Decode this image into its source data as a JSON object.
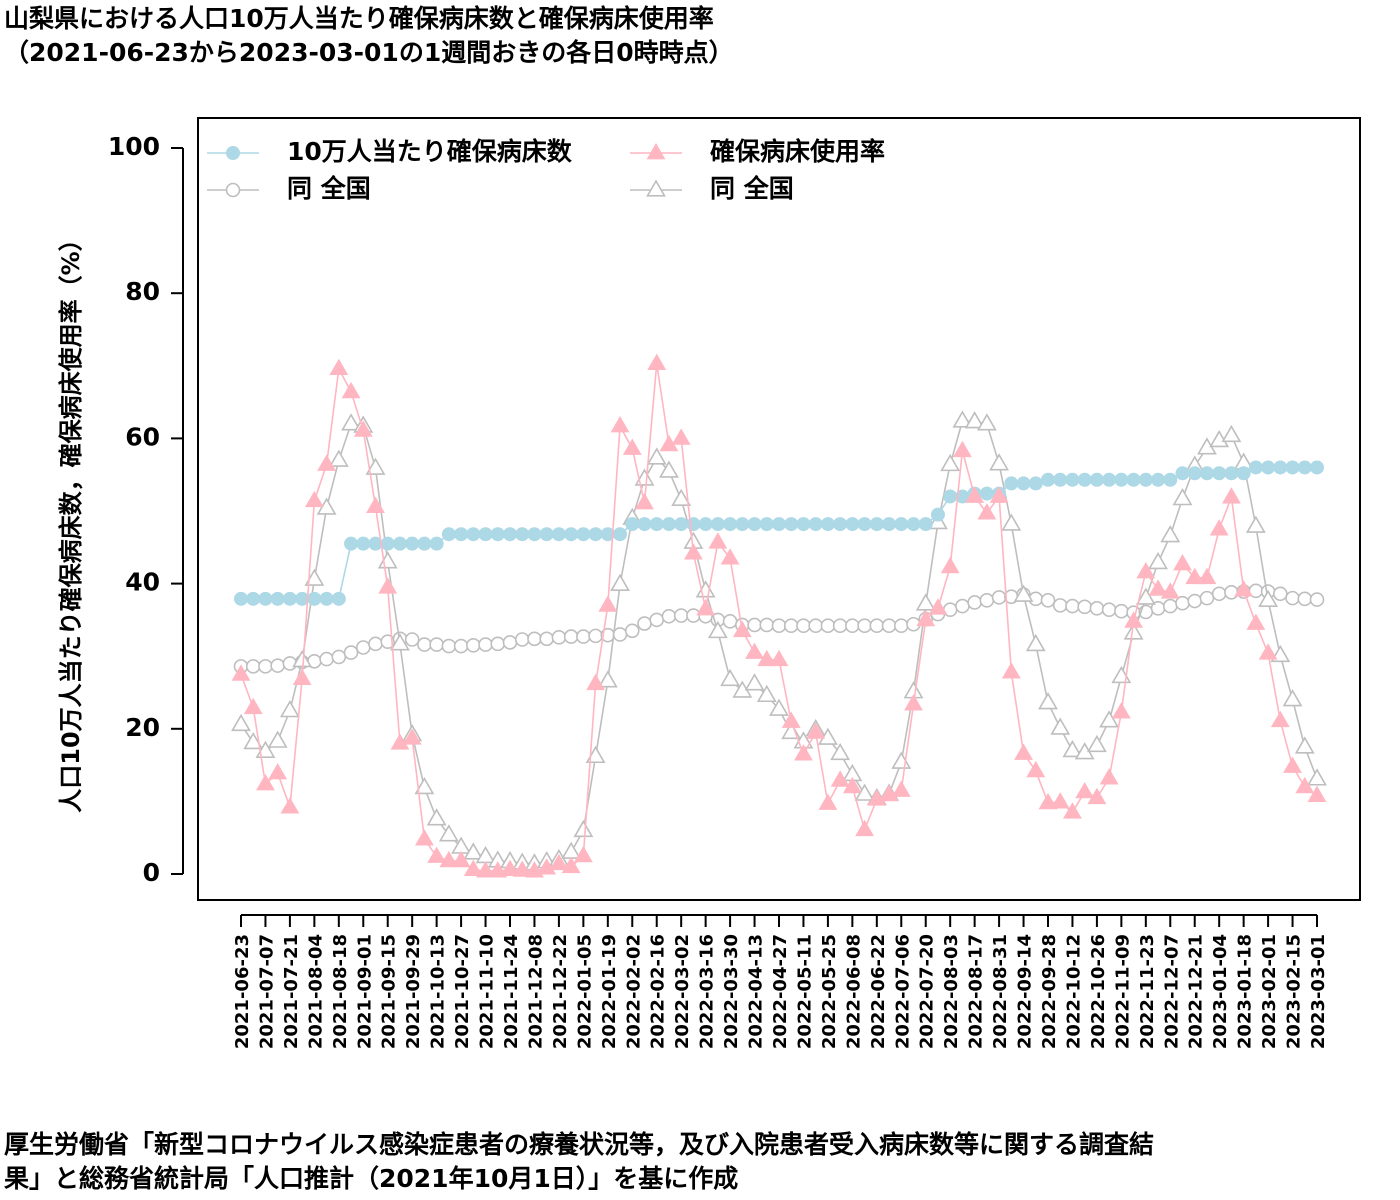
{
  "title_line1": "山梨県における人口10万人当たり確保病床数と確保病床使用率",
  "title_line2": "（2021-06-23から2023-03-01の1週間おきの各日0時時点）",
  "caption_line1": "厚生労働省「新型コロナウイルス感染症患者の療養状況等，及び入院患者受入病床数等に関する調査結",
  "caption_line2": "果」と総務省統計局「人口推計（2021年10月1日）」を基に作成",
  "chart_data": {
    "type": "line",
    "ylabel": "人口10万人当たり確保病床数，確保病床使用率（%）",
    "ylim": [
      0,
      100
    ],
    "yticks": [
      0,
      20,
      40,
      60,
      80,
      100
    ],
    "x": [
      "2021-06-23",
      "2021-06-30",
      "2021-07-07",
      "2021-07-14",
      "2021-07-21",
      "2021-07-28",
      "2021-08-04",
      "2021-08-11",
      "2021-08-18",
      "2021-08-25",
      "2021-09-01",
      "2021-09-08",
      "2021-09-15",
      "2021-09-22",
      "2021-09-29",
      "2021-10-06",
      "2021-10-13",
      "2021-10-20",
      "2021-10-27",
      "2021-11-03",
      "2021-11-10",
      "2021-11-17",
      "2021-11-24",
      "2021-12-01",
      "2021-12-08",
      "2021-12-15",
      "2021-12-22",
      "2021-12-29",
      "2022-01-05",
      "2022-01-12",
      "2022-01-19",
      "2022-01-26",
      "2022-02-02",
      "2022-02-09",
      "2022-02-16",
      "2022-02-23",
      "2022-03-02",
      "2022-03-09",
      "2022-03-16",
      "2022-03-23",
      "2022-03-30",
      "2022-04-06",
      "2022-04-13",
      "2022-04-20",
      "2022-04-27",
      "2022-05-04",
      "2022-05-11",
      "2022-05-18",
      "2022-05-25",
      "2022-06-01",
      "2022-06-08",
      "2022-06-15",
      "2022-06-22",
      "2022-06-29",
      "2022-07-06",
      "2022-07-13",
      "2022-07-20",
      "2022-07-27",
      "2022-08-03",
      "2022-08-10",
      "2022-08-17",
      "2022-08-24",
      "2022-08-31",
      "2022-09-07",
      "2022-09-14",
      "2022-09-21",
      "2022-09-28",
      "2022-10-05",
      "2022-10-12",
      "2022-10-19",
      "2022-10-26",
      "2022-11-02",
      "2022-11-09",
      "2022-11-16",
      "2022-11-23",
      "2022-11-30",
      "2022-12-07",
      "2022-12-14",
      "2022-12-21",
      "2022-12-28",
      "2023-01-04",
      "2023-01-11",
      "2023-01-18",
      "2023-01-25",
      "2023-02-01",
      "2023-02-08",
      "2023-02-15",
      "2023-02-22",
      "2023-03-01"
    ],
    "tick_labels": [
      "2021-06-23",
      "2021-07-07",
      "2021-07-21",
      "2021-08-04",
      "2021-08-18",
      "2021-09-01",
      "2021-09-15",
      "2021-09-29",
      "2021-10-13",
      "2021-10-27",
      "2021-11-10",
      "2021-11-24",
      "2021-12-08",
      "2021-12-22",
      "2022-01-05",
      "2022-01-19",
      "2022-02-02",
      "2022-02-16",
      "2022-03-02",
      "2022-03-16",
      "2022-03-30",
      "2022-04-13",
      "2022-04-27",
      "2022-05-11",
      "2022-05-25",
      "2022-06-08",
      "2022-06-22",
      "2022-07-06",
      "2022-07-20",
      "2022-08-03",
      "2022-08-17",
      "2022-08-31",
      "2022-09-14",
      "2022-09-28",
      "2022-10-12",
      "2022-10-26",
      "2022-11-09",
      "2022-11-23",
      "2022-12-07",
      "2022-12-21",
      "2023-01-04",
      "2023-01-18",
      "2023-02-01",
      "2023-02-15",
      "2023-03-01"
    ],
    "series": [
      {
        "name": "10万人当たり確保病床数",
        "marker": "circle-filled",
        "color": "#add8e6",
        "values": [
          37.9,
          37.9,
          37.9,
          37.9,
          37.9,
          37.9,
          37.9,
          37.9,
          37.9,
          45.5,
          45.5,
          45.5,
          45.5,
          45.5,
          45.5,
          45.5,
          45.5,
          46.8,
          46.8,
          46.8,
          46.8,
          46.8,
          46.8,
          46.8,
          46.8,
          46.8,
          46.8,
          46.8,
          46.8,
          46.8,
          46.8,
          46.8,
          48.2,
          48.2,
          48.2,
          48.2,
          48.2,
          48.2,
          48.2,
          48.2,
          48.2,
          48.2,
          48.2,
          48.2,
          48.2,
          48.2,
          48.2,
          48.2,
          48.2,
          48.2,
          48.2,
          48.2,
          48.2,
          48.2,
          48.2,
          48.2,
          48.2,
          49.5,
          52.0,
          52.0,
          52.4,
          52.4,
          52.4,
          53.8,
          53.8,
          53.8,
          54.3,
          54.3,
          54.3,
          54.3,
          54.3,
          54.3,
          54.3,
          54.3,
          54.3,
          54.3,
          54.3,
          55.2,
          55.2,
          55.2,
          55.2,
          55.2,
          55.2,
          56.0,
          56.0,
          56.0,
          56.0,
          56.0,
          56.0
        ]
      },
      {
        "name": "確保病床使用率",
        "marker": "triangle-filled",
        "color": "#ffb6c1",
        "values": [
          27.5,
          22.9,
          12.4,
          13.9,
          9.2,
          26.9,
          51.4,
          56.4,
          69.6,
          66.4,
          61.1,
          50.6,
          39.5,
          18.0,
          18.7,
          4.8,
          2.4,
          1.8,
          1.8,
          0.6,
          0.4,
          0.4,
          0.6,
          0.5,
          0.4,
          0.8,
          1.4,
          1.0,
          2.5,
          26.2,
          37.0,
          61.7,
          58.6,
          51.1,
          70.3,
          59.1,
          60.0,
          44.2,
          36.5,
          45.7,
          43.5,
          33.5,
          30.5,
          29.5,
          29.5,
          21.0,
          16.5,
          19.5,
          9.7,
          12.9,
          12.0,
          6.1,
          10.3,
          10.9,
          11.5,
          23.4,
          35.0,
          36.6,
          42.3,
          58.3,
          52.0,
          49.7,
          52.0,
          27.8,
          16.6,
          14.2,
          9.8,
          9.9,
          8.5,
          11.3,
          10.5,
          13.2,
          22.3,
          34.8,
          41.6,
          39.2,
          38.8,
          42.7,
          40.8,
          40.8,
          47.5,
          51.9,
          39.1,
          34.5,
          30.4,
          21.1,
          14.8,
          12.0,
          10.8
        ]
      },
      {
        "name": "同 全国",
        "marker": "circle-open",
        "color": "#bebebe",
        "values": [
          28.6,
          28.6,
          28.6,
          28.7,
          29.0,
          29.2,
          29.3,
          29.6,
          29.9,
          30.5,
          31.2,
          31.7,
          32.0,
          32.4,
          32.3,
          31.6,
          31.6,
          31.4,
          31.4,
          31.5,
          31.6,
          31.7,
          31.9,
          32.3,
          32.4,
          32.4,
          32.6,
          32.7,
          32.7,
          32.8,
          32.9,
          33.0,
          33.5,
          34.5,
          35.0,
          35.5,
          35.6,
          35.6,
          35.5,
          35.0,
          34.8,
          34.3,
          34.3,
          34.3,
          34.2,
          34.2,
          34.2,
          34.2,
          34.2,
          34.2,
          34.2,
          34.2,
          34.2,
          34.2,
          34.2,
          34.4,
          35.1,
          35.8,
          36.4,
          36.9,
          37.4,
          37.7,
          38.1,
          38.2,
          38.5,
          37.9,
          37.7,
          37.0,
          36.9,
          36.8,
          36.6,
          36.4,
          36.2,
          36.0,
          36.1,
          36.6,
          36.9,
          37.3,
          37.6,
          38.0,
          38.6,
          38.8,
          38.9,
          39.0,
          38.9,
          38.6,
          38.0,
          37.9,
          37.8
        ]
      },
      {
        "name": "同 全国",
        "marker": "triangle-open",
        "color": "#bebebe",
        "values": [
          20.6,
          18.1,
          16.9,
          18.3,
          22.5,
          29.4,
          40.6,
          50.4,
          57.0,
          62.0,
          61.7,
          55.9,
          43.0,
          31.7,
          19.2,
          11.9,
          7.6,
          5.4,
          3.7,
          2.9,
          2.4,
          1.8,
          1.7,
          1.5,
          1.4,
          1.7,
          2.0,
          3.0,
          6.0,
          16.2,
          26.6,
          39.9,
          49.0,
          54.4,
          57.3,
          55.5,
          51.6,
          45.7,
          39.0,
          33.4,
          26.8,
          25.2,
          26.2,
          24.6,
          22.7,
          19.5,
          18.2,
          19.9,
          18.7,
          16.6,
          13.7,
          11.0,
          10.4,
          11.0,
          15.4,
          25.1,
          37.2,
          48.4,
          56.4,
          62.4,
          62.3,
          62.0,
          56.5,
          48.2,
          38.4,
          31.6,
          23.6,
          20.1,
          17.0,
          16.7,
          17.7,
          21.1,
          27.2,
          33.2,
          38.0,
          42.9,
          46.6,
          51.7,
          56.2,
          58.7,
          59.7,
          60.4,
          56.6,
          47.9,
          37.7,
          30.1,
          24.0,
          17.5,
          13.1
        ]
      }
    ],
    "legend_position": "top-left"
  }
}
